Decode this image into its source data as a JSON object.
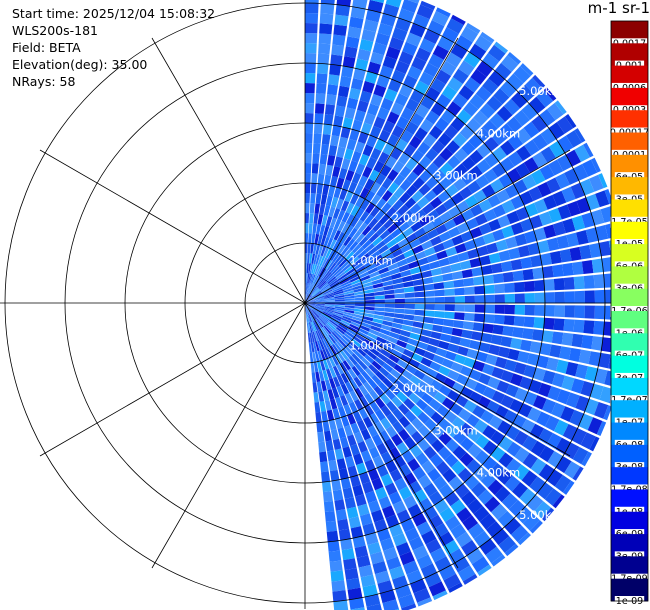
{
  "info": {
    "start_time": "Start time: 2025/12/04 15:08:32",
    "instrument": "WLS200s-181",
    "field": "Field: BETA",
    "elevation": "Elevation(deg): 35.00",
    "nrays": "NRays: 58"
  },
  "colorbar": {
    "title": "m-1 sr-1",
    "labels": [
      "0.0017",
      "0.001",
      "0.0006",
      "0.0003",
      "0.00017",
      "0.0001",
      "6e-05",
      "3e-05",
      "1.7e-05",
      "1e-05",
      "6e-06",
      "3e-06",
      "1.7e-06",
      "1e-06",
      "6e-07",
      "3e-07",
      "1.7e-07",
      "1e-07",
      "6e-08",
      "3e-08",
      "1.7e-08",
      "1e-08",
      "6e-09",
      "3e-09",
      "1.7e-09",
      "1e-09"
    ],
    "colors": [
      "#8c0000",
      "#b00000",
      "#d40000",
      "#f00000",
      "#ff3000",
      "#ff6000",
      "#ff9000",
      "#ffb800",
      "#ffe000",
      "#ffff00",
      "#d8ff20",
      "#b0ff40",
      "#88ff60",
      "#60ff80",
      "#30ffb0",
      "#00ffe0",
      "#00d8ff",
      "#00b0ff",
      "#0088ff",
      "#0060ff",
      "#0038ff",
      "#0010ff",
      "#0000e0",
      "#0000b8",
      "#000090",
      "#000068"
    ]
  },
  "chart_data": {
    "type": "heatmap",
    "projection": "polar-ppi",
    "range_rings": [
      {
        "range_km": 1,
        "label": "1.00km"
      },
      {
        "range_km": 2,
        "label": "2.00km"
      },
      {
        "range_km": 3,
        "label": "3.00km"
      },
      {
        "range_km": 4,
        "label": "4.00km"
      },
      {
        "range_km": 5,
        "label": "5.00km"
      }
    ],
    "ring_label_color": "#ffffff",
    "azimuth_start_deg": 0,
    "azimuth_end_deg": 175,
    "nrays": 58,
    "max_range_km": 5.4,
    "field": "BETA",
    "value_range": [
      1e-09,
      0.0017
    ],
    "dominant_value_approx": 3e-08
  }
}
